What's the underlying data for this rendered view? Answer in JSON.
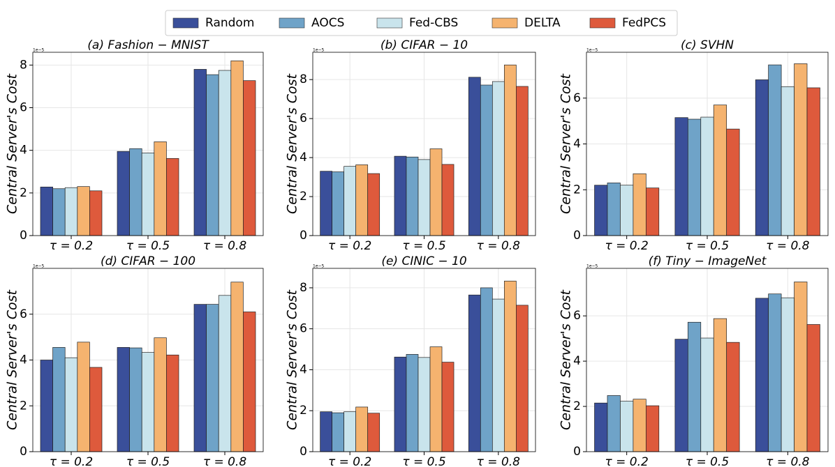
{
  "legend": [
    {
      "name": "Random",
      "color": "#3a4f9a"
    },
    {
      "name": "AOCS",
      "color": "#6fa3c8"
    },
    {
      "name": "Fed-CBS",
      "color": "#c9e4ec"
    },
    {
      "name": "DELTA",
      "color": "#f5b36f"
    },
    {
      "name": "FedPCS",
      "color": "#de5a3c"
    }
  ],
  "chart_data": [
    {
      "type": "bar",
      "title": "(a) Fashion − MNIST",
      "y_label": "Central Server's Cost",
      "offset_label": "1e−5",
      "categories": [
        "τ = 0.2",
        "τ = 0.5",
        "τ = 0.8"
      ],
      "ylim": [
        0,
        8.6
      ],
      "yticks": [
        0,
        2,
        4,
        6,
        8
      ],
      "grid": true,
      "series": [
        {
          "values": [
            2.28,
            3.95,
            7.8
          ]
        },
        {
          "values": [
            2.2,
            4.08,
            7.55
          ]
        },
        {
          "values": [
            2.25,
            3.88,
            7.75
          ]
        },
        {
          "values": [
            2.3,
            4.4,
            8.2
          ]
        },
        {
          "values": [
            2.1,
            3.62,
            7.27
          ]
        }
      ]
    },
    {
      "type": "bar",
      "title": "(b) CIFAR − 10",
      "y_label": "Central Server's Cost",
      "offset_label": "1e−5",
      "categories": [
        "τ = 0.2",
        "τ = 0.5",
        "τ = 0.8"
      ],
      "ylim": [
        0,
        9.4
      ],
      "yticks": [
        0,
        2,
        4,
        6,
        8
      ],
      "grid": true,
      "series": [
        {
          "values": [
            3.3,
            4.07,
            8.12
          ]
        },
        {
          "values": [
            3.27,
            4.03,
            7.72
          ]
        },
        {
          "values": [
            3.55,
            3.9,
            7.9
          ]
        },
        {
          "values": [
            3.63,
            4.45,
            8.75
          ]
        },
        {
          "values": [
            3.18,
            3.65,
            7.65
          ]
        }
      ]
    },
    {
      "type": "bar",
      "title": "(c) SVHN",
      "y_label": "Central Server's Cost",
      "offset_label": "1e−5",
      "categories": [
        "τ = 0.2",
        "τ = 0.5",
        "τ = 0.8"
      ],
      "ylim": [
        0,
        8.0
      ],
      "yticks": [
        0,
        2,
        4,
        6
      ],
      "grid": true,
      "series": [
        {
          "values": [
            2.2,
            5.15,
            6.8
          ]
        },
        {
          "values": [
            2.3,
            5.08,
            7.45
          ]
        },
        {
          "values": [
            2.2,
            5.17,
            6.5
          ]
        },
        {
          "values": [
            2.7,
            5.7,
            7.5
          ]
        },
        {
          "values": [
            2.08,
            4.65,
            6.45
          ]
        }
      ]
    },
    {
      "type": "bar",
      "title": "(d) CIFAR − 100",
      "y_label": "Central Server's Cost",
      "offset_label": "1e−5",
      "categories": [
        "τ = 0.2",
        "τ = 0.5",
        "τ = 0.8"
      ],
      "ylim": [
        0,
        8.0
      ],
      "yticks": [
        0,
        2,
        4,
        6
      ],
      "grid": true,
      "series": [
        {
          "values": [
            4.0,
            4.55,
            6.43
          ]
        },
        {
          "values": [
            4.55,
            4.53,
            6.43
          ]
        },
        {
          "values": [
            4.1,
            4.33,
            6.82
          ]
        },
        {
          "values": [
            4.78,
            4.97,
            7.4
          ]
        },
        {
          "values": [
            3.68,
            4.22,
            6.1
          ]
        }
      ]
    },
    {
      "type": "bar",
      "title": "(e) CINIC − 10",
      "y_label": "Central Server's Cost",
      "offset_label": "1e−5",
      "categories": [
        "τ = 0.2",
        "τ = 0.5",
        "τ = 0.8"
      ],
      "ylim": [
        0,
        8.95
      ],
      "yticks": [
        0,
        2,
        4,
        6,
        8
      ],
      "grid": true,
      "series": [
        {
          "values": [
            1.95,
            4.62,
            7.65
          ]
        },
        {
          "values": [
            1.9,
            4.75,
            8.0
          ]
        },
        {
          "values": [
            1.95,
            4.6,
            7.45
          ]
        },
        {
          "values": [
            2.18,
            5.12,
            8.33
          ]
        },
        {
          "values": [
            1.88,
            4.37,
            7.15
          ]
        }
      ]
    },
    {
      "type": "bar",
      "title": "(f) Tiny − ImageNet",
      "y_label": "Central Server's Cost",
      "offset_label": "1e−5",
      "categories": [
        "τ = 0.2",
        "τ = 0.5",
        "τ = 0.8"
      ],
      "ylim": [
        0,
        8.1
      ],
      "yticks": [
        0,
        2,
        4,
        6
      ],
      "grid": true,
      "series": [
        {
          "values": [
            2.15,
            4.97,
            6.78
          ]
        },
        {
          "values": [
            2.48,
            5.72,
            6.97
          ]
        },
        {
          "values": [
            2.23,
            5.02,
            6.8
          ]
        },
        {
          "values": [
            2.32,
            5.88,
            7.5
          ]
        },
        {
          "values": [
            2.03,
            4.83,
            5.62
          ]
        }
      ]
    }
  ]
}
